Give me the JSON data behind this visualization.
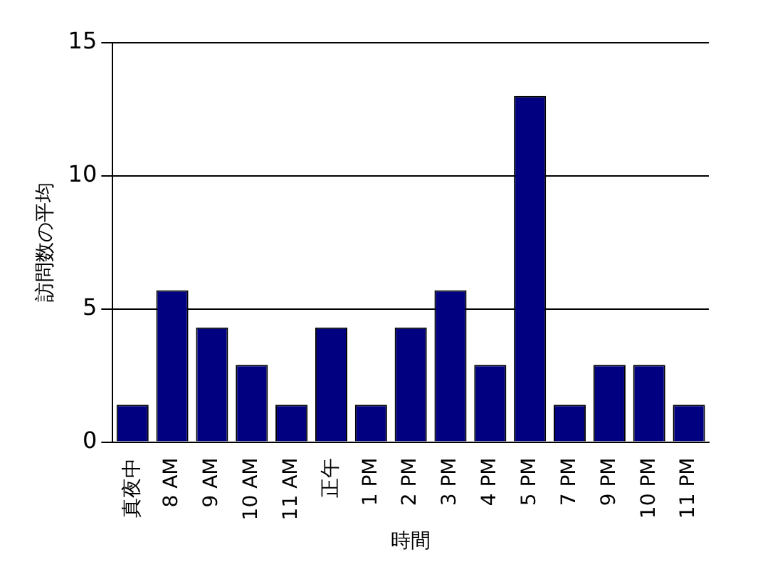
{
  "chart_data": {
    "type": "bar",
    "xlabel": "時間",
    "ylabel": "訪問数の平均",
    "categories": [
      "真夜中",
      "8 AM",
      "9 AM",
      "10 AM",
      "11 AM",
      "正午",
      "1 PM",
      "2 PM",
      "3 PM",
      "4 PM",
      "5 PM",
      "7 PM",
      "9 PM",
      "10 PM",
      "11 PM"
    ],
    "values": [
      1.4,
      5.7,
      4.3,
      2.9,
      1.4,
      4.3,
      1.4,
      4.3,
      5.7,
      2.9,
      13,
      1.4,
      2.9,
      2.9,
      1.4
    ],
    "color": "#000080",
    "ylim": [
      0,
      15
    ],
    "yticks": [
      0,
      5,
      10,
      15
    ],
    "grid": "y"
  }
}
